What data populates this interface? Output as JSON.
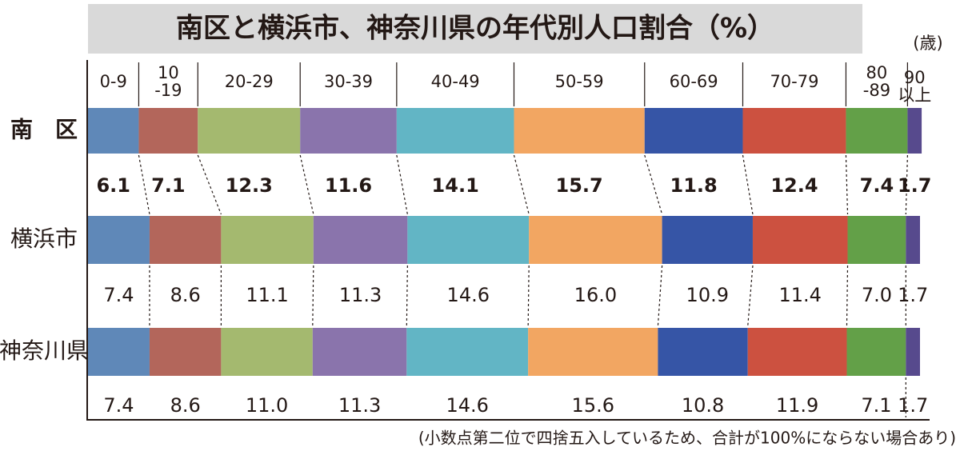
{
  "chart_data": {
    "type": "stacked_bar_horizontal",
    "title": "南区と横浜市、神奈川県の年代別人口割合（%）",
    "unit_label": "(歳)",
    "note": "(小数点第二位で四捨五入しているため、合計が100%にならない場合あり)",
    "categories": [
      "南　区",
      "横浜市",
      "神奈川県"
    ],
    "xlim": [
      0,
      100
    ],
    "series": [
      {
        "name": "0-9",
        "color": "#5f88b8",
        "values": [
          6.1,
          7.4,
          7.4
        ],
        "value_labels": [
          "6.1",
          "7.4",
          "7.4"
        ]
      },
      {
        "name": "10\n-19",
        "color": "#b3665b",
        "values": [
          7.1,
          8.6,
          8.6
        ],
        "value_labels": [
          "7.1",
          "8.6",
          "8.6"
        ]
      },
      {
        "name": "20-29",
        "color": "#a4b96f",
        "values": [
          12.3,
          11.1,
          11.0
        ],
        "value_labels": [
          "12.3",
          "11.1",
          "11.0"
        ]
      },
      {
        "name": "30-39",
        "color": "#8a74ac",
        "values": [
          11.6,
          11.3,
          11.3
        ],
        "value_labels": [
          "11.6",
          "11.3",
          "11.3"
        ]
      },
      {
        "name": "40-49",
        "color": "#62b5c5",
        "values": [
          14.1,
          14.6,
          14.6
        ],
        "value_labels": [
          "14.1",
          "14.6",
          "14.6"
        ]
      },
      {
        "name": "50-59",
        "color": "#f2a662",
        "values": [
          15.7,
          16.0,
          15.6
        ],
        "value_labels": [
          "15.7",
          "16.0",
          "15.6"
        ]
      },
      {
        "name": "60-69",
        "color": "#3655a6",
        "values": [
          11.8,
          10.9,
          10.8
        ],
        "value_labels": [
          "11.8",
          "10.9",
          "10.8"
        ]
      },
      {
        "name": "70-79",
        "color": "#cc5140",
        "values": [
          12.4,
          11.4,
          11.9
        ],
        "value_labels": [
          "12.4",
          "11.4",
          "11.9"
        ]
      },
      {
        "name": "80\n-89",
        "color": "#63a048",
        "values": [
          7.4,
          7.0,
          7.1
        ],
        "value_labels": [
          "7.4",
          "7.0",
          "7.1"
        ]
      },
      {
        "name": "90\n以上",
        "color": "#574a8d",
        "values": [
          1.7,
          1.7,
          1.7
        ],
        "value_labels": [
          "1.7",
          "1.7",
          "1.7"
        ]
      }
    ]
  }
}
